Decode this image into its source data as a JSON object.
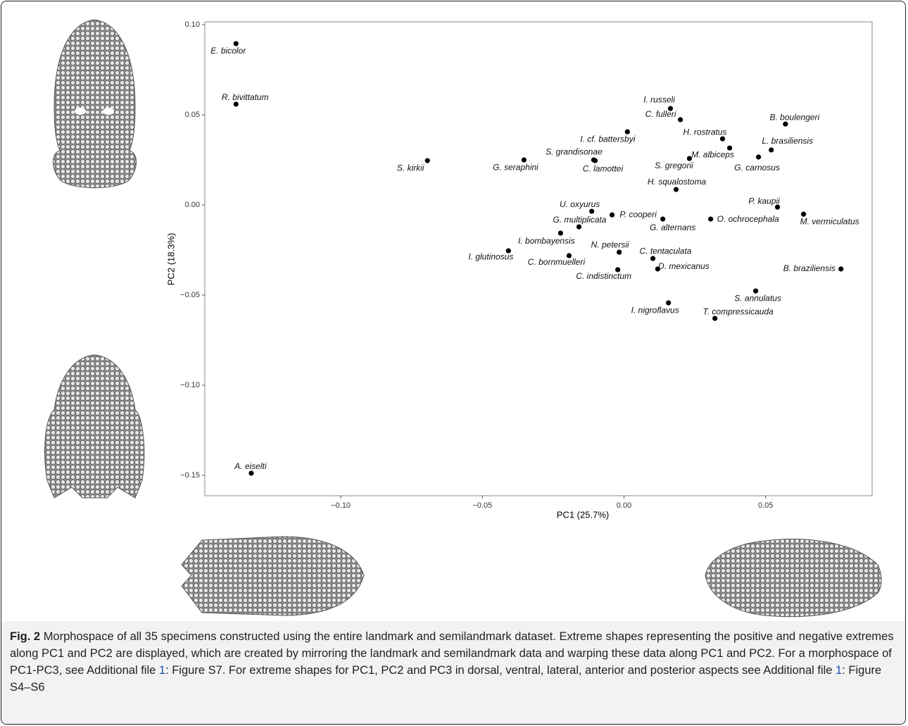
{
  "chart_data": {
    "type": "scatter",
    "x_label": "PC1 (25.7%)",
    "y_label": "PC2 (18.3%)",
    "color": "#000000",
    "xlim": [
      -0.148,
      0.0876
    ],
    "ylim": [
      -0.1613,
      0.1016
    ],
    "xticks": [
      {
        "value": -0.1,
        "label": "−0.10"
      },
      {
        "value": -0.05,
        "label": "−0.05"
      },
      {
        "value": 0,
        "label": "0.00"
      },
      {
        "value": 0.05,
        "label": "0.05"
      }
    ],
    "yticks": [
      {
        "value": 0.1,
        "label": "0.10"
      },
      {
        "value": 0.05,
        "label": "0.05"
      },
      {
        "value": 0,
        "label": "0.00"
      },
      {
        "value": -0.05,
        "label": "−0.05"
      },
      {
        "value": -0.1,
        "label": "−0.10"
      },
      {
        "value": -0.15,
        "label": "−0.15"
      }
    ],
    "labels": [
      "E. bicolor",
      "R. bivittatum",
      "S. kirkii",
      "G. seraphini",
      "S. grandisonae",
      "C. lamottei",
      "I. cf. battersbyi",
      "I. russeli",
      "C. fulleri",
      "B. boulengeri",
      "H. rostratus",
      "L. brasiliensis",
      "M. albiceps",
      "G. carnosus",
      "S. gregorii",
      "H. squalostoma",
      "P. kaupii",
      "M. vermiculatus",
      "U. oxyurus",
      "P. cooperi",
      "G. alternans",
      "O. ochrocephala",
      "G. multiplicata",
      "I. bombayensis",
      "I. glutinosus",
      "C. bornmuelleri",
      "N. petersii",
      "C. tentaculata",
      "D. mexicanus",
      "C. indistinctum",
      "B. braziliensis",
      "S. annulatus",
      "I. nigroflavus",
      "T. compressicauda",
      "A. eiselti"
    ],
    "x": [
      -0.137,
      -0.137,
      -0.0694,
      -0.0353,
      -0.0107,
      -0.0102,
      0.0012,
      0.0164,
      0.0199,
      0.057,
      0.0348,
      0.052,
      0.0373,
      0.0475,
      0.0231,
      0.0184,
      0.0542,
      0.0634,
      -0.0114,
      -0.0042,
      0.0137,
      0.0306,
      -0.0159,
      -0.0224,
      -0.0408,
      -0.0194,
      -0.0017,
      0.0102,
      0.0119,
      -0.0022,
      0.0766,
      0.0465,
      0.0157,
      0.0321,
      -0.1316
    ],
    "y": [
      0.0895,
      0.0559,
      0.0246,
      0.025,
      0.025,
      0.0246,
      0.0406,
      0.0535,
      0.0473,
      0.0449,
      0.0367,
      0.0305,
      0.0316,
      0.0266,
      0.0258,
      0.0086,
      -0.0012,
      -0.0051,
      -0.0035,
      -0.0055,
      -0.0078,
      -0.0078,
      -0.0121,
      -0.0156,
      -0.0254,
      -0.0281,
      -0.0262,
      -0.0297,
      -0.0355,
      -0.0359,
      -0.0355,
      -0.0477,
      -0.0543,
      -0.0629,
      -0.1488
    ]
  },
  "caption": {
    "label": "Fig. 2",
    "parts": [
      "Morphospace of all 35 specimens constructed using the entire landmark and semilandmark dataset. Extreme shapes representing the positive and negative extremes along PC1 and PC2 are displayed, which are created by mirroring the landmark and semilandmark data and warping these data along PC1 and PC2. For a morphospace of PC1-PC3, see Additional file ",
      "1",
      ": Figure S7. For extreme shapes for PC1, PC2 and PC3 in dorsal, ventral, lateral, anterior and posterior aspects see Additional file ",
      "1",
      ": Figure S4–S6"
    ]
  }
}
